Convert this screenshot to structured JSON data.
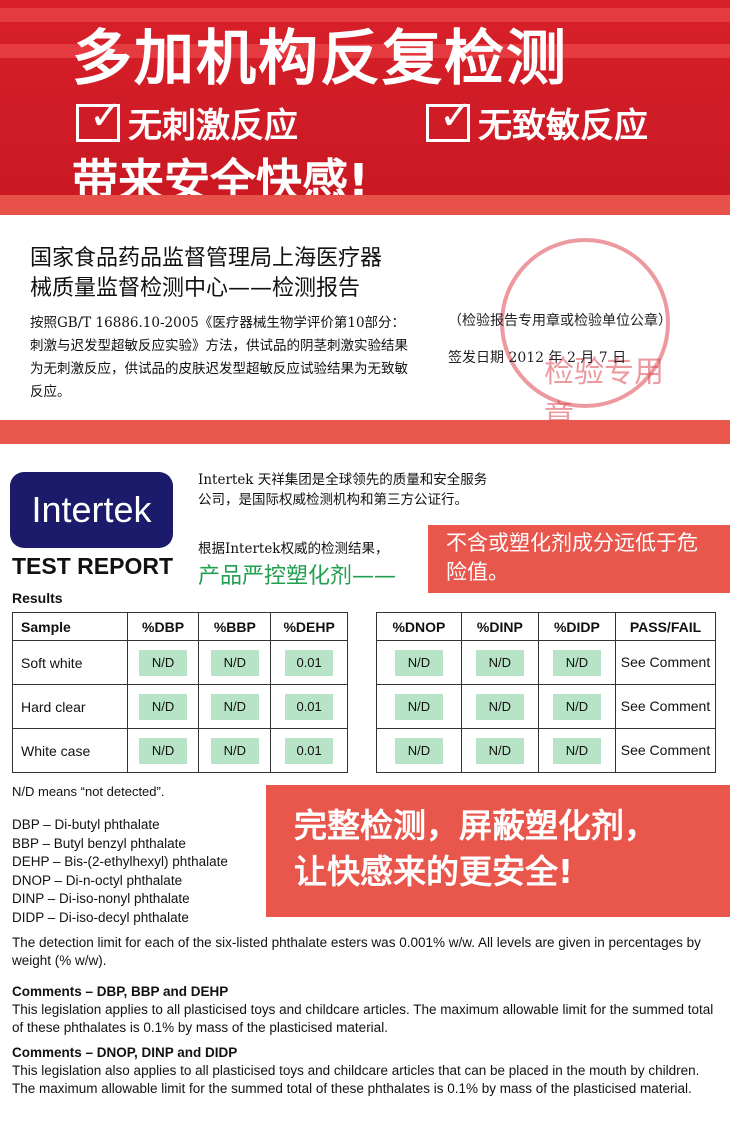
{
  "banner": {
    "title": "多加机构反复检测",
    "check1": "无刺激反应",
    "check2": "无致敏反应",
    "subtitle": "带来安全快感!"
  },
  "cfda": {
    "heading_line1": "国家食品药品监督管理局上海医疗器",
    "heading_line2": "械质量监督检测中心——检测报告",
    "body": "按照GB/T 16886.10-2005《医疗器械生物学评价第10部分：刺激与迟发型超敏反应实验》方法，供试品的阴茎刺激实验结果为无刺激反应，供试品的皮肤迟发型超敏反应试验结果为无致敏反应。",
    "stamp_note": "（检验报告专用章或检验单位公章）",
    "sign_date": "签发日期 2012 年 2 月 7 日",
    "stamp_text": "检验专用章"
  },
  "intertek": {
    "logo": "Intertek",
    "test_report": "TEST REPORT",
    "intro": "Intertek 天祥集团是全球领先的质量和安全服务公司，是国际权威检测机构和第三方公证行。",
    "intro2": "根据Intertek权威的检测结果，",
    "green": "产品严控塑化剂——",
    "callout": "不含或塑化剂成分远低于危险值。",
    "results_label": "Results"
  },
  "table_left": {
    "headers": [
      "Sample",
      "%DBP",
      "%BBP",
      "%DEHP"
    ],
    "rows": [
      [
        "Soft white",
        "N/D",
        "N/D",
        "0.01"
      ],
      [
        "Hard clear",
        "N/D",
        "N/D",
        "0.01"
      ],
      [
        "White case",
        "N/D",
        "N/D",
        "0.01"
      ]
    ]
  },
  "table_right": {
    "headers": [
      "%DNOP",
      "%DINP",
      "%DIDP",
      "PASS/FAIL"
    ],
    "rows": [
      [
        "N/D",
        "N/D",
        "N/D",
        "See Comment"
      ],
      [
        "N/D",
        "N/D",
        "N/D",
        "See Comment"
      ],
      [
        "N/D",
        "N/D",
        "N/D",
        "See Comment"
      ]
    ]
  },
  "nd_note": "N/D means “not detected”.",
  "abbreviations": [
    "DBP – Di-butyl phthalate",
    "BBP – Butyl benzyl phthalate",
    "DEHP – Bis-(2-ethylhexyl) phthalate",
    "DNOP – Di-n-octyl phthalate",
    "DINP – Di-iso-nonyl phthalate",
    "DIDP – Di-iso-decyl phthalate"
  ],
  "callout2": {
    "line1": "完整检测，屏蔽塑化剂，",
    "line2": "让快感来的更安全!"
  },
  "detection": "The detection limit for each of the six-listed phthalate esters was 0.001% w/w.  All levels are given in percentages by weight (% w/w).",
  "comment1": {
    "title": "Comments – DBP, BBP and DEHP",
    "body": "This legislation applies to all plasticised toys and childcare articles.  The maximum allowable limit for the summed total of these phthalates is 0.1% by mass of the plasticised material."
  },
  "comment2": {
    "title": "Comments – DNOP, DINP and DIDP",
    "body": "This legislation also applies to all plasticised toys and childcare articles that can be placed in the mouth by children.  The maximum allowable limit for the summed total of these phthalates is 0.1% by mass of the plasticised material."
  },
  "colors": {
    "banner_red": "#d8202a",
    "accent_red": "#e8564c",
    "nd_green": "#b7e4c7",
    "text_green": "#22a050",
    "intertek_navy": "#1b1a6b"
  }
}
